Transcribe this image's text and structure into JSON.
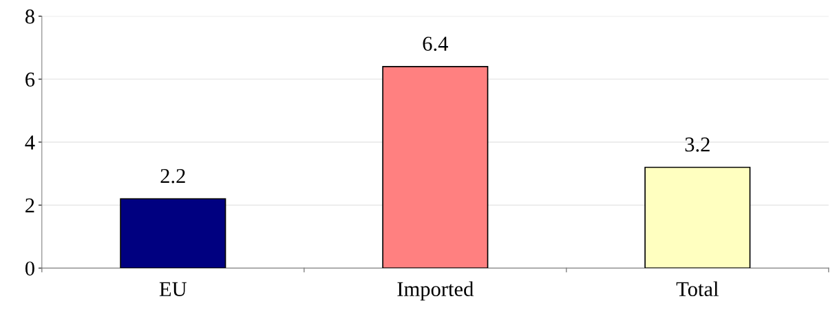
{
  "chart_data": {
    "type": "bar",
    "categories": [
      "EU",
      "Imported",
      "Total"
    ],
    "values": [
      2.2,
      6.4,
      3.2
    ],
    "colors": [
      "#000080",
      "#ff8080",
      "#ffffc0"
    ],
    "ylim": [
      0,
      8
    ],
    "yticks": [
      0,
      2,
      4,
      6,
      8
    ],
    "data_labels": true,
    "grid": "y"
  }
}
